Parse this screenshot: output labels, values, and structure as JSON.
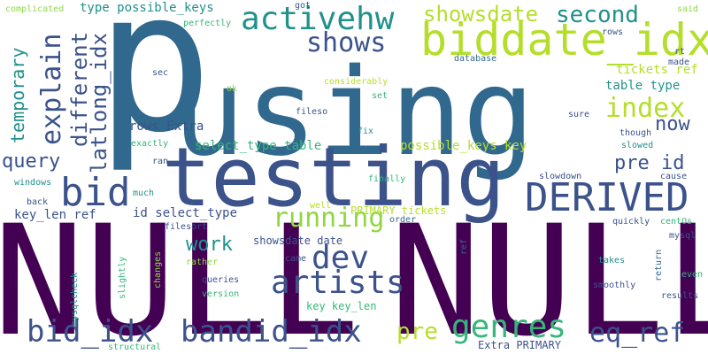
{
  "wordcloud": {
    "colors": {
      "background": "#ffffff",
      "dark_purple": "#440154",
      "indigo": "#3b528b",
      "blue": "#31688e",
      "teal": "#21918c",
      "green": "#35b779",
      "lime": "#90d743",
      "yellow_green": "#b5de2b"
    },
    "words": {
      "w_null1": "NULL",
      "w_null2": "NULL",
      "w_using": "using",
      "w_p": "p",
      "w_testing": "testing",
      "w_biddate_idx": "biddate_idx",
      "w_derived": "DERIVED",
      "w_bid": "bid",
      "w_activehw": "activehw",
      "w_showsdate": "showsdate",
      "w_second": "second",
      "w_shows": "shows",
      "w_index": "index",
      "w_now": "now",
      "w_explain": "explain",
      "w_different": "different",
      "w_latlong_idx": "latlong_idx",
      "w_temporary": "temporary",
      "w_query": "query",
      "w_pre_id": "pre id",
      "w_running": "running",
      "w_dev": "dev",
      "w_artists": "artists",
      "w_work": "work",
      "w_genres": "genres",
      "w_bid_idx": "bid_idx",
      "w_bandid_idx": "bandid_idx",
      "w_pre": "pre",
      "w_eq_ref": "eq_ref",
      "w_type_possible_keys": "type possible_keys",
      "w_complicated": "complicated",
      "w_perfectly": "perfectly",
      "w_got": "got",
      "w_said": "said",
      "w_rows_top": "rows",
      "w_rt": "rt",
      "w_made": "made",
      "w_tickets_ref": "tickets ref",
      "w_table_type": "table type",
      "w_database": "database",
      "w_considerably": "considerably",
      "w_sec": "sec",
      "w_ok": "ok",
      "w_set": "set",
      "w_sure": "sure",
      "w_rows_extra": "rows Extra",
      "w_fileso": "fileso",
      "w_fix": "fix",
      "w_possible_keys_key": "possible_keys key",
      "w_though": "though",
      "w_exactly": "exactly",
      "w_select_type_table": "select_type table",
      "w_slowed": "slowed",
      "w_ran": "ran",
      "w_windows": "windows",
      "w_well": "well",
      "w_finally": "finally",
      "w_slowdown": "slowdown",
      "w_cause": "cause",
      "w_much": "much",
      "w_back": "back",
      "w_key_len_ref": "key_len ref",
      "w_id_select_type": "id select_type",
      "w_primary_tickets": "PRIMARY tickets",
      "w_order": "order",
      "w_quickly": "quickly",
      "w_centos": "centOs",
      "w_filesort": "filesort",
      "w_mysqlcheck": "mysqlcheck",
      "w_showsdate_date": "showsdate date",
      "w_mysql": "mysql",
      "w_rather": "rather",
      "w_slightly": "slightly",
      "w_changes": "changes",
      "w_came": "came",
      "w_ref": "ref",
      "w_takes": "takes",
      "w_return": "return",
      "w_even": "even",
      "w_queries": "queries",
      "w_smoothly": "smoothly",
      "w_version": "version",
      "w_results": "results",
      "w_key_key_len": "key key_len",
      "w_extra_primary": "Extra PRIMARY",
      "w_structural": "structural"
    }
  }
}
